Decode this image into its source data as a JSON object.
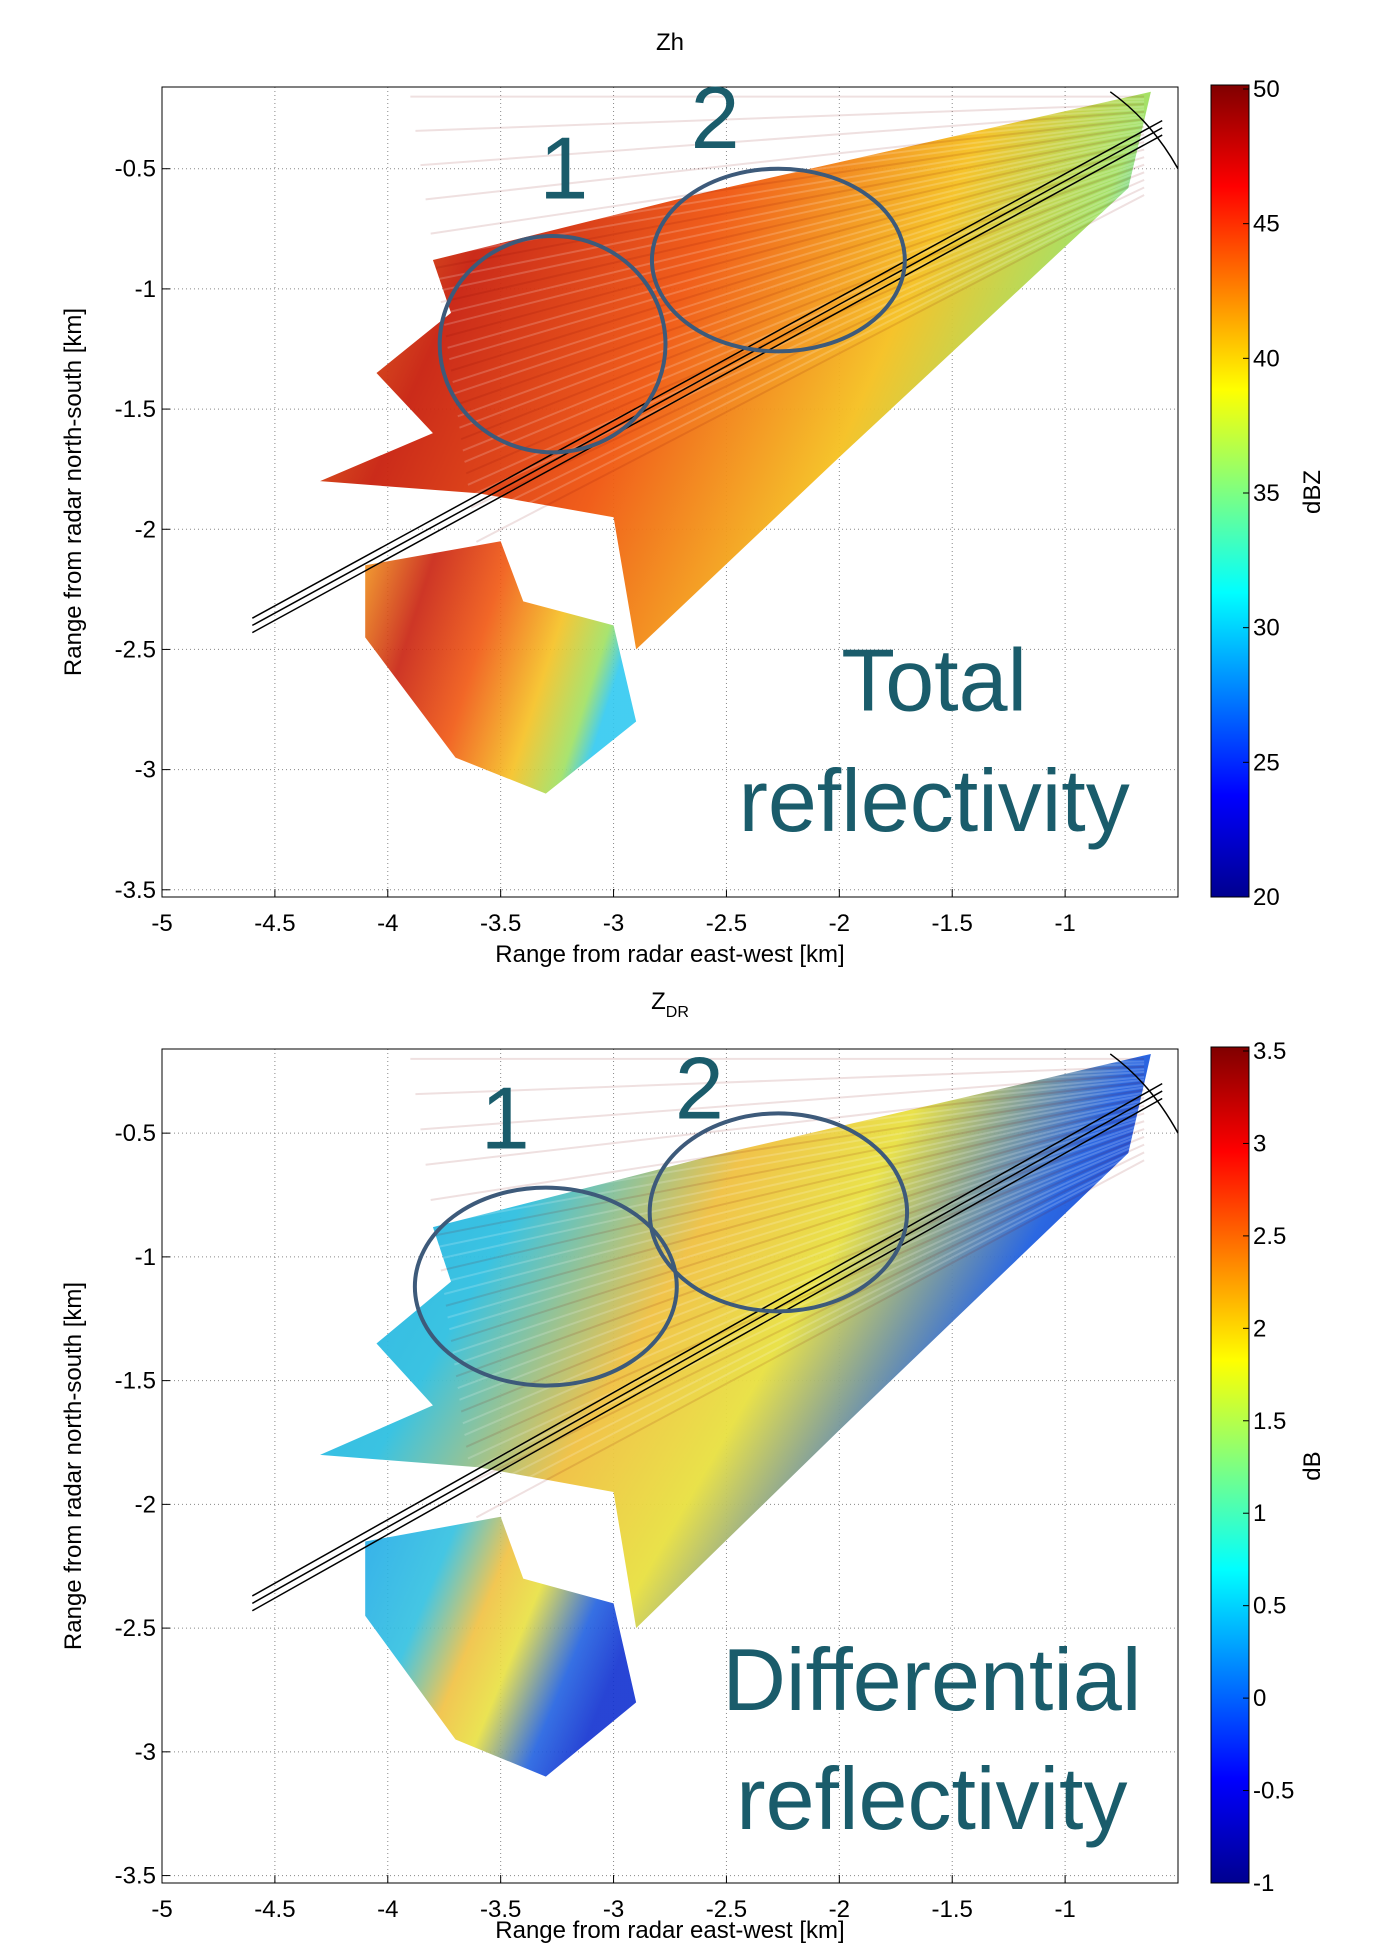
{
  "chart_data": [
    {
      "type": "radar-ppi",
      "title": "Zh",
      "x_label": "Range from radar east-west [km]",
      "y_label": "Range from radar north-south [km]",
      "xlim": [
        -5,
        -0.5
      ],
      "xticks": [
        -5,
        -4.5,
        -4,
        -3.5,
        -3,
        -2.5,
        -2,
        -1.5,
        -1
      ],
      "ylim": [
        -3.53,
        -0.16
      ],
      "yticks": [
        -3.5,
        -3,
        -2.5,
        -2,
        -1.5,
        -1,
        -0.5
      ],
      "grid": true,
      "colormap": "jet",
      "colorbar": {
        "label": "dBZ",
        "lim": [
          20,
          50
        ],
        "ticks": [
          20,
          25,
          30,
          35,
          40,
          45,
          50
        ]
      },
      "annotations": [
        "1",
        "2",
        "Total",
        "reflectivity"
      ]
    },
    {
      "type": "radar-ppi",
      "title": "Z",
      "title_subscript": "DR",
      "x_label": "Range from radar east-west [km]",
      "y_label": "Range from radar north-south [km]",
      "xlim": [
        -5,
        -0.5
      ],
      "xticks": [
        -5,
        -4.5,
        -4,
        -3.5,
        -3,
        -2.5,
        -2,
        -1.5,
        -1
      ],
      "ylim": [
        -3.53,
        -0.16
      ],
      "yticks": [
        -3.5,
        -3,
        -2.5,
        -2,
        -1.5,
        -1,
        -0.5
      ],
      "grid": true,
      "colormap": "jet",
      "colorbar": {
        "label": "dB",
        "lim": [
          -1,
          3.5
        ],
        "ticks": [
          -1,
          -0.5,
          0,
          0.5,
          1,
          1.5,
          2,
          2.5,
          3,
          3.5
        ]
      },
      "annotations": [
        "1",
        "2",
        "Differential",
        "reflectivity"
      ]
    }
  ]
}
